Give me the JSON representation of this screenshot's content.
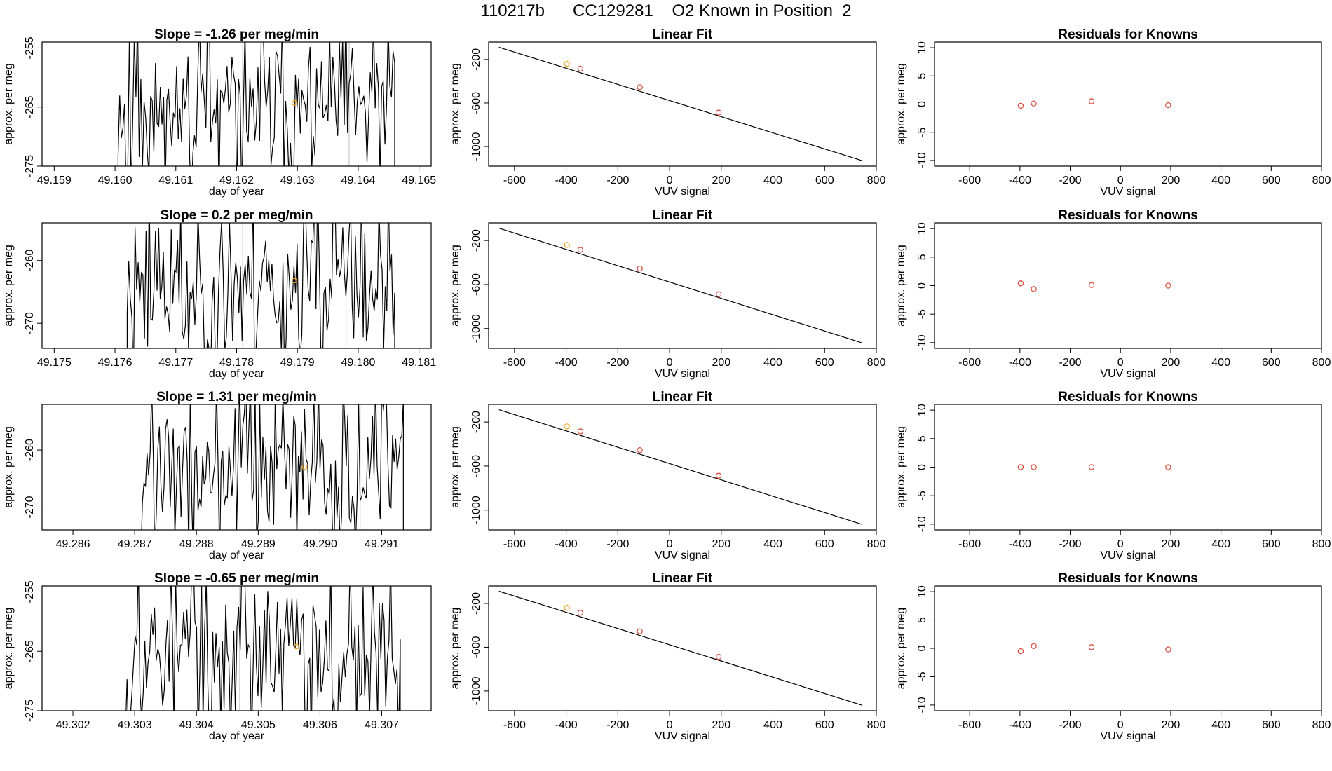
{
  "title": "110217b      CC129281    O2 Known in Position  2",
  "colors": {
    "trace": "#000000",
    "fit_line": "#000000",
    "point_red": "#d94a3a",
    "point_orange": "#f0a21a",
    "marker_vline": "#c8c8c8"
  },
  "chart_data": [
    {
      "type": "line",
      "panel": "row1-time-series",
      "title": "Slope =  -1.26  per meg/min",
      "xlabel": "day of year",
      "ylabel": "approx. per meg",
      "xlim": [
        49.1588,
        49.1652
      ],
      "ylim": [
        -275,
        -254
      ],
      "xticks": [
        49.159,
        49.16,
        49.161,
        49.162,
        49.163,
        49.164,
        49.165
      ],
      "yticks": [
        -275,
        -265,
        -255
      ],
      "x_decimals": 3,
      "trace_start": 49.16005,
      "trace_end": 49.1646,
      "base": -279,
      "mean": -265,
      "amp": 7,
      "seed": 11,
      "vlines": [
        49.1621,
        49.16385
      ],
      "point": {
        "x": 49.16295,
        "y": -264.3
      }
    },
    {
      "type": "line",
      "panel": "row1-linear-fit",
      "title": "Linear Fit",
      "xlabel": "VUV signal",
      "ylabel": "approx. per meg",
      "xlim": [
        -700,
        800
      ],
      "ylim": [
        -1180,
        -40
      ],
      "xticks": [
        -600,
        -400,
        -200,
        0,
        200,
        400,
        600,
        800
      ],
      "yticks": [
        -1000,
        -600,
        -200
      ],
      "line": [
        [
          -660,
          -88
        ],
        [
          745,
          -1130
        ]
      ],
      "points": [
        {
          "x": -397,
          "y": -240,
          "c": "orange"
        },
        {
          "x": -345,
          "y": -285,
          "c": "red"
        },
        {
          "x": -115,
          "y": -455,
          "c": "red"
        },
        {
          "x": 190,
          "y": -688,
          "c": "red"
        }
      ]
    },
    {
      "type": "scatter",
      "panel": "row1-residuals",
      "title": "Residuals for Knowns",
      "xlabel": "VUV signal",
      "ylabel": "approx. per meg",
      "xlim": [
        -740,
        800
      ],
      "ylim": [
        -11,
        11
      ],
      "xticks": [
        -600,
        -400,
        -200,
        0,
        200,
        400,
        600,
        800
      ],
      "yticks": [
        -10,
        -5,
        0,
        5,
        10
      ],
      "points": [
        {
          "x": -397,
          "y": -0.3
        },
        {
          "x": -345,
          "y": 0.1
        },
        {
          "x": -115,
          "y": 0.5
        },
        {
          "x": 190,
          "y": -0.2
        }
      ]
    },
    {
      "type": "line",
      "panel": "row2-time-series",
      "title": "Slope =  0.2  per meg/min",
      "xlabel": "day of year",
      "ylabel": "approx. per meg",
      "xlim": [
        49.1748,
        49.1812
      ],
      "ylim": [
        -274,
        -254
      ],
      "xticks": [
        49.175,
        49.176,
        49.177,
        49.178,
        49.179,
        49.18,
        49.181
      ],
      "yticks": [
        -270,
        -260
      ],
      "x_decimals": 3,
      "trace_start": 49.1762,
      "trace_end": 49.1806,
      "base": -278,
      "mean": -264,
      "amp": 7,
      "seed": 23,
      "vlines": [
        49.1781,
        49.1798
      ],
      "point": {
        "x": 49.17895,
        "y": -263.2
      }
    },
    {
      "type": "line",
      "panel": "row2-linear-fit",
      "title": "Linear Fit",
      "xlabel": "VUV signal",
      "ylabel": "approx. per meg",
      "xlim": [
        -700,
        800
      ],
      "ylim": [
        -1180,
        -40
      ],
      "xticks": [
        -600,
        -400,
        -200,
        0,
        200,
        400,
        600,
        800
      ],
      "yticks": [
        -1000,
        -600,
        -200
      ],
      "line": [
        [
          -660,
          -88
        ],
        [
          745,
          -1130
        ]
      ],
      "points": [
        {
          "x": -397,
          "y": -240,
          "c": "orange"
        },
        {
          "x": -345,
          "y": -285,
          "c": "red"
        },
        {
          "x": -115,
          "y": -455,
          "c": "red"
        },
        {
          "x": 190,
          "y": -688,
          "c": "red"
        }
      ]
    },
    {
      "type": "scatter",
      "panel": "row2-residuals",
      "title": "Residuals for Knowns",
      "xlabel": "VUV signal",
      "ylabel": "approx. per meg",
      "xlim": [
        -740,
        800
      ],
      "ylim": [
        -11,
        11
      ],
      "xticks": [
        -600,
        -400,
        -200,
        0,
        200,
        400,
        600,
        800
      ],
      "yticks": [
        -10,
        -5,
        0,
        5,
        10
      ],
      "points": [
        {
          "x": -397,
          "y": 0.4
        },
        {
          "x": -345,
          "y": -0.6
        },
        {
          "x": -115,
          "y": 0.1
        },
        {
          "x": 190,
          "y": 0.0
        }
      ]
    },
    {
      "type": "line",
      "panel": "row3-time-series",
      "title": "Slope =  1.31  per meg/min",
      "xlabel": "day of year",
      "ylabel": "approx. per meg",
      "xlim": [
        49.2855,
        49.2918
      ],
      "ylim": [
        -274,
        -252
      ],
      "xticks": [
        49.286,
        49.287,
        49.288,
        49.289,
        49.29,
        49.291
      ],
      "yticks": [
        -270,
        -260
      ],
      "x_decimals": 3,
      "trace_start": 49.2871,
      "trace_end": 49.29135,
      "base": -278,
      "mean": -264,
      "amp": 7,
      "seed": 37,
      "vlines": [
        49.2889,
        49.29065
      ],
      "point": {
        "x": 49.28975,
        "y": -263.0
      }
    },
    {
      "type": "line",
      "panel": "row3-linear-fit",
      "title": "Linear Fit",
      "xlabel": "VUV signal",
      "ylabel": "approx. per meg",
      "xlim": [
        -700,
        800
      ],
      "ylim": [
        -1180,
        -40
      ],
      "xticks": [
        -600,
        -400,
        -200,
        0,
        200,
        400,
        600,
        800
      ],
      "yticks": [
        -1000,
        -600,
        -200
      ],
      "line": [
        [
          -660,
          -88
        ],
        [
          745,
          -1130
        ]
      ],
      "points": [
        {
          "x": -397,
          "y": -240,
          "c": "orange"
        },
        {
          "x": -345,
          "y": -285,
          "c": "red"
        },
        {
          "x": -115,
          "y": -455,
          "c": "red"
        },
        {
          "x": 190,
          "y": -688,
          "c": "red"
        }
      ]
    },
    {
      "type": "scatter",
      "panel": "row3-residuals",
      "title": "Residuals for Knowns",
      "xlabel": "VUV signal",
      "ylabel": "approx. per meg",
      "xlim": [
        -740,
        800
      ],
      "ylim": [
        -11,
        11
      ],
      "xticks": [
        -600,
        -400,
        -200,
        0,
        200,
        400,
        600,
        800
      ],
      "yticks": [
        -10,
        -5,
        0,
        5,
        10
      ],
      "points": [
        {
          "x": -397,
          "y": 0.0
        },
        {
          "x": -345,
          "y": 0.0
        },
        {
          "x": -115,
          "y": 0.0
        },
        {
          "x": 190,
          "y": 0.0
        }
      ]
    },
    {
      "type": "line",
      "panel": "row4-time-series",
      "title": "Slope =  -0.65  per meg/min",
      "xlabel": "day of year",
      "ylabel": "approx. per meg",
      "xlim": [
        49.3015,
        49.3078
      ],
      "ylim": [
        -275,
        -254
      ],
      "xticks": [
        49.302,
        49.303,
        49.304,
        49.305,
        49.306,
        49.307
      ],
      "yticks": [
        -275,
        -265,
        -255
      ],
      "x_decimals": 3,
      "trace_start": 49.30285,
      "trace_end": 49.3073,
      "base": -279,
      "mean": -265,
      "amp": 7,
      "seed": 53,
      "vlines": [
        49.3047,
        49.3065
      ],
      "point": {
        "x": 49.30562,
        "y": -264.2
      }
    },
    {
      "type": "line",
      "panel": "row4-linear-fit",
      "title": "Linear Fit",
      "xlabel": "VUV signal",
      "ylabel": "approx. per meg",
      "xlim": [
        -700,
        800
      ],
      "ylim": [
        -1180,
        -40
      ],
      "xticks": [
        -600,
        -400,
        -200,
        0,
        200,
        400,
        600,
        800
      ],
      "yticks": [
        -1000,
        -600,
        -200
      ],
      "line": [
        [
          -660,
          -88
        ],
        [
          745,
          -1130
        ]
      ],
      "points": [
        {
          "x": -397,
          "y": -240,
          "c": "orange"
        },
        {
          "x": -345,
          "y": -285,
          "c": "red"
        },
        {
          "x": -115,
          "y": -455,
          "c": "red"
        },
        {
          "x": 190,
          "y": -688,
          "c": "red"
        }
      ]
    },
    {
      "type": "scatter",
      "panel": "row4-residuals",
      "title": "Residuals for Knowns",
      "xlabel": "VUV signal",
      "ylabel": "approx. per meg",
      "xlim": [
        -740,
        800
      ],
      "ylim": [
        -11,
        11
      ],
      "xticks": [
        -600,
        -400,
        -200,
        0,
        200,
        400,
        600,
        800
      ],
      "yticks": [
        -10,
        -5,
        0,
        5,
        10
      ],
      "points": [
        {
          "x": -397,
          "y": -0.5
        },
        {
          "x": -345,
          "y": 0.4
        },
        {
          "x": -115,
          "y": 0.2
        },
        {
          "x": 190,
          "y": -0.2
        }
      ]
    }
  ]
}
